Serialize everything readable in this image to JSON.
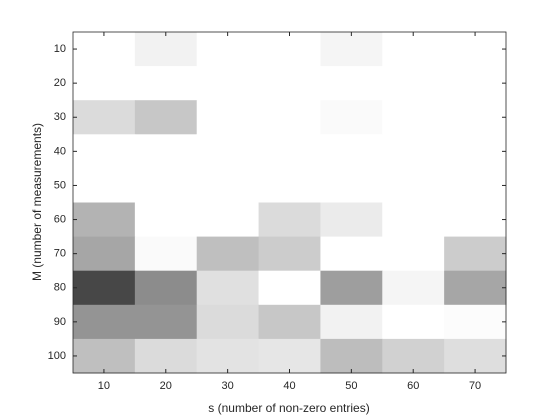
{
  "chart_data": {
    "type": "heatmap",
    "xlabel": "s (number of non-zero entries)",
    "ylabel": "M (number of measurements)",
    "x": [
      10,
      20,
      30,
      40,
      50,
      60,
      70
    ],
    "y": [
      10,
      20,
      30,
      40,
      50,
      60,
      70,
      80,
      90,
      100
    ],
    "colormap": "gray",
    "values": [
      [
        1,
        0.95,
        1,
        1,
        0.96,
        1,
        1
      ],
      [
        1,
        1,
        1,
        1,
        1,
        1,
        1
      ],
      [
        0.86,
        0.78,
        1,
        1,
        0.98,
        1,
        1
      ],
      [
        1,
        1,
        1,
        1,
        1,
        1,
        1
      ],
      [
        1,
        1,
        1,
        1,
        1,
        1,
        1
      ],
      [
        0.7,
        1,
        1,
        0.86,
        0.92,
        1,
        1
      ],
      [
        0.65,
        0.98,
        0.75,
        0.8,
        1,
        1,
        0.8
      ],
      [
        0.28,
        0.55,
        0.88,
        1,
        0.62,
        0.96,
        0.65
      ],
      [
        0.58,
        0.58,
        0.86,
        0.78,
        0.95,
        1,
        0.99
      ],
      [
        0.75,
        0.86,
        0.89,
        0.9,
        0.74,
        0.82,
        0.87
      ]
    ]
  }
}
